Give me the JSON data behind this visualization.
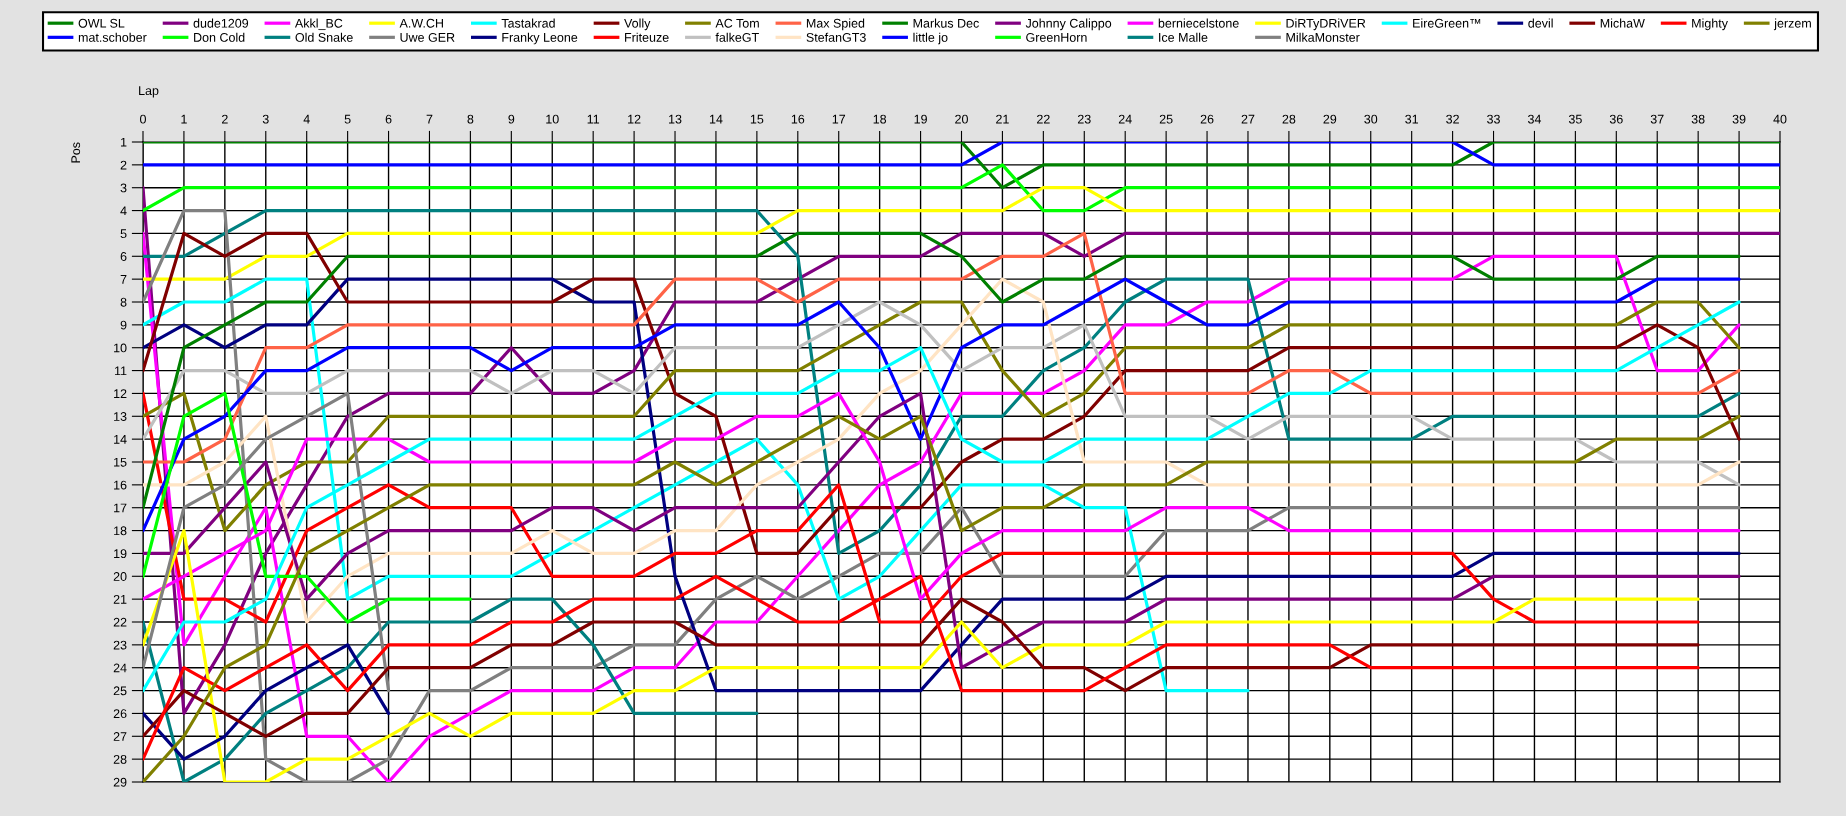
{
  "chart_data": {
    "type": "line",
    "xlabel": "Lap",
    "ylabel": "Pos",
    "x": [
      0,
      1,
      2,
      3,
      4,
      5,
      6,
      7,
      8,
      9,
      10,
      11,
      12,
      13,
      14,
      15,
      16,
      17,
      18,
      19,
      20,
      21,
      22,
      23,
      24,
      25,
      26,
      27,
      28,
      29,
      30,
      31,
      32,
      33,
      34,
      35,
      36,
      37,
      38,
      39,
      40
    ],
    "xlim": [
      0,
      40
    ],
    "ylim": [
      29,
      1
    ],
    "xticks": [
      0,
      1,
      2,
      3,
      4,
      5,
      6,
      7,
      8,
      9,
      10,
      11,
      12,
      13,
      14,
      15,
      16,
      17,
      18,
      19,
      20,
      21,
      22,
      23,
      24,
      25,
      26,
      27,
      28,
      29,
      30,
      31,
      32,
      33,
      34,
      35,
      36,
      37,
      38,
      39,
      40
    ],
    "yticks": [
      1,
      2,
      3,
      4,
      5,
      6,
      7,
      8,
      9,
      10,
      11,
      12,
      13,
      14,
      15,
      16,
      17,
      18,
      19,
      20,
      21,
      22,
      23,
      24,
      25,
      26,
      27,
      28,
      29
    ],
    "grid": true,
    "legend": "top",
    "marker": "none",
    "line_style": "solid",
    "series": [
      {
        "name": "OWL SL",
        "color": "#008000",
        "values": [
          1,
          1,
          1,
          1,
          1,
          1,
          1,
          1,
          1,
          1,
          1,
          1,
          1,
          1,
          1,
          1,
          1,
          1,
          1,
          1,
          1,
          3,
          2,
          2,
          2,
          2,
          2,
          2,
          2,
          2,
          2,
          2,
          2,
          1,
          1,
          1,
          1,
          1,
          1,
          1,
          1
        ]
      },
      {
        "name": "mat.schober",
        "color": "#0000ff",
        "values": [
          2,
          2,
          2,
          2,
          2,
          2,
          2,
          2,
          2,
          2,
          2,
          2,
          2,
          2,
          2,
          2,
          2,
          2,
          2,
          2,
          2,
          1,
          1,
          1,
          1,
          1,
          1,
          1,
          1,
          1,
          1,
          1,
          1,
          2,
          2,
          2,
          2,
          2,
          2,
          2,
          2
        ]
      },
      {
        "name": "dude1209",
        "color": "#800080",
        "values": [
          3,
          26,
          23,
          19,
          16,
          13,
          12,
          12,
          12,
          10,
          12,
          12,
          11,
          8,
          8,
          8,
          7,
          6,
          6,
          6,
          5,
          5,
          5,
          6,
          5,
          5,
          5,
          5,
          5,
          5,
          5,
          5,
          5,
          5,
          5,
          5,
          5,
          5,
          5,
          5,
          5
        ]
      },
      {
        "name": "Don Cold",
        "color": "#00ff00",
        "values": [
          4,
          3,
          3,
          3,
          3,
          3,
          3,
          3,
          3,
          3,
          3,
          3,
          3,
          3,
          3,
          3,
          3,
          3,
          3,
          3,
          3,
          2,
          4,
          4,
          3,
          3,
          3,
          3,
          3,
          3,
          3,
          3,
          3,
          3,
          3,
          3,
          3,
          3,
          3,
          3,
          3
        ]
      },
      {
        "name": "Akkl_BC",
        "color": "#ff00ff",
        "values": [
          5,
          23,
          20,
          17,
          27,
          27,
          29,
          27,
          26,
          25,
          25,
          25,
          24,
          24,
          22,
          22,
          20,
          18,
          16,
          15,
          12,
          12,
          12,
          11,
          9,
          9,
          8,
          8,
          7,
          7,
          7,
          7,
          7,
          6,
          6,
          6,
          6,
          11,
          11,
          9,
          null
        ]
      },
      {
        "name": "Old Snake",
        "color": "#008080",
        "values": [
          6,
          6,
          5,
          4,
          4,
          4,
          4,
          4,
          4,
          4,
          4,
          4,
          4,
          4,
          4,
          4,
          6,
          19,
          18,
          16,
          13,
          13,
          11,
          10,
          8,
          7,
          7,
          7,
          14,
          14,
          14,
          14,
          13,
          13,
          13,
          13,
          13,
          13,
          13,
          12,
          null
        ]
      },
      {
        "name": "A.W.CH",
        "color": "#ffff00",
        "values": [
          7,
          7,
          7,
          6,
          6,
          5,
          5,
          5,
          5,
          5,
          5,
          5,
          5,
          5,
          5,
          5,
          4,
          4,
          4,
          4,
          4,
          4,
          3,
          3,
          4,
          4,
          4,
          4,
          4,
          4,
          4,
          4,
          4,
          4,
          4,
          4,
          4,
          4,
          4,
          4,
          4
        ]
      },
      {
        "name": "Uwe GER",
        "color": "#808080",
        "values": [
          8,
          4,
          4,
          28,
          29,
          29,
          28,
          25,
          25,
          24,
          24,
          24,
          23,
          23,
          21,
          20,
          21,
          20,
          19,
          19,
          17,
          20,
          20,
          20,
          20,
          18,
          18,
          18,
          17,
          17,
          17,
          17,
          17,
          17,
          17,
          17,
          17,
          17,
          17,
          17,
          null
        ]
      },
      {
        "name": "Tastakrad",
        "color": "#00ffff",
        "values": [
          9,
          8,
          8,
          7,
          7,
          21,
          20,
          20,
          20,
          20,
          19,
          18,
          17,
          16,
          15,
          14,
          16,
          21,
          20,
          18,
          16,
          16,
          16,
          17,
          17,
          25,
          25,
          25,
          null,
          null,
          null,
          null,
          null,
          null,
          null,
          null,
          null,
          null,
          null,
          null,
          null
        ]
      },
      {
        "name": "Franky Leone",
        "color": "#000080",
        "values": [
          10,
          9,
          10,
          9,
          9,
          7,
          7,
          7,
          7,
          7,
          7,
          8,
          8,
          20,
          25,
          25,
          25,
          25,
          25,
          25,
          23,
          21,
          21,
          21,
          21,
          20,
          20,
          20,
          20,
          20,
          20,
          20,
          20,
          19,
          19,
          19,
          19,
          19,
          19,
          19,
          null
        ]
      },
      {
        "name": "Volly",
        "color": "#800000",
        "values": [
          11,
          5,
          6,
          5,
          5,
          8,
          8,
          8,
          8,
          8,
          8,
          7,
          7,
          12,
          13,
          19,
          19,
          17,
          17,
          17,
          15,
          14,
          14,
          13,
          11,
          11,
          11,
          11,
          10,
          10,
          10,
          10,
          10,
          10,
          10,
          10,
          10,
          9,
          10,
          14,
          null
        ]
      },
      {
        "name": "Friteuze",
        "color": "#ff0000",
        "values": [
          12,
          21,
          21,
          22,
          18,
          17,
          16,
          17,
          17,
          17,
          20,
          20,
          20,
          19,
          19,
          18,
          18,
          16,
          22,
          22,
          20,
          19,
          19,
          19,
          19,
          19,
          19,
          19,
          19,
          19,
          19,
          19,
          19,
          21,
          22,
          22,
          22,
          22,
          22,
          null,
          null
        ]
      },
      {
        "name": "AC Tom",
        "color": "#808000",
        "values": [
          13,
          12,
          18,
          16,
          15,
          15,
          13,
          13,
          13,
          13,
          13,
          13,
          13,
          11,
          11,
          11,
          11,
          10,
          9,
          8,
          8,
          11,
          13,
          12,
          10,
          10,
          10,
          10,
          9,
          9,
          9,
          9,
          9,
          9,
          9,
          9,
          9,
          8,
          8,
          10,
          null
        ]
      },
      {
        "name": "falkeGT",
        "color": "#c0c0c0",
        "values": [
          14,
          11,
          11,
          12,
          12,
          11,
          11,
          11,
          11,
          12,
          11,
          11,
          12,
          10,
          10,
          10,
          10,
          9,
          8,
          9,
          11,
          10,
          10,
          9,
          13,
          13,
          13,
          14,
          13,
          13,
          13,
          13,
          14,
          14,
          14,
          14,
          15,
          15,
          15,
          16,
          null
        ]
      },
      {
        "name": "Max Spied",
        "color": "#ff6347",
        "values": [
          15,
          15,
          14,
          10,
          10,
          9,
          9,
          9,
          9,
          9,
          9,
          9,
          9,
          7,
          7,
          7,
          8,
          7,
          7,
          7,
          7,
          6,
          6,
          5,
          12,
          12,
          12,
          12,
          11,
          11,
          12,
          12,
          12,
          12,
          12,
          12,
          12,
          12,
          12,
          11,
          null
        ]
      },
      {
        "name": "StefanGT3",
        "color": "#ffe4c4",
        "values": [
          16,
          16,
          15,
          13,
          22,
          20,
          19,
          19,
          19,
          19,
          18,
          19,
          19,
          18,
          18,
          16,
          15,
          14,
          12,
          11,
          9,
          7,
          8,
          15,
          15,
          15,
          16,
          16,
          16,
          16,
          16,
          16,
          16,
          16,
          16,
          16,
          16,
          16,
          16,
          15,
          null
        ]
      },
      {
        "name": "Markus Dec",
        "color": "#008000",
        "values": [
          17,
          10,
          9,
          8,
          8,
          6,
          6,
          6,
          6,
          6,
          6,
          6,
          6,
          6,
          6,
          6,
          5,
          5,
          5,
          5,
          6,
          8,
          7,
          7,
          6,
          6,
          6,
          6,
          6,
          6,
          6,
          6,
          6,
          7,
          7,
          7,
          7,
          6,
          6,
          6,
          null
        ]
      },
      {
        "name": "little jo",
        "color": "#0000ff",
        "values": [
          18,
          14,
          13,
          11,
          11,
          10,
          10,
          10,
          10,
          11,
          10,
          10,
          10,
          9,
          9,
          9,
          9,
          8,
          10,
          14,
          10,
          9,
          9,
          8,
          7,
          8,
          9,
          9,
          8,
          8,
          8,
          8,
          8,
          8,
          8,
          8,
          8,
          7,
          7,
          7,
          null
        ]
      },
      {
        "name": "Johnny Calippo",
        "color": "#800080",
        "values": [
          19,
          19,
          17,
          15,
          21,
          19,
          18,
          18,
          18,
          18,
          17,
          17,
          18,
          17,
          17,
          17,
          17,
          15,
          13,
          12,
          24,
          23,
          22,
          22,
          22,
          21,
          21,
          21,
          21,
          21,
          21,
          21,
          21,
          20,
          20,
          20,
          20,
          20,
          20,
          20,
          null
        ]
      },
      {
        "name": "GreenHorn",
        "color": "#00ff00",
        "values": [
          20,
          13,
          12,
          20,
          20,
          22,
          21,
          21,
          21,
          null,
          null,
          null,
          null,
          null,
          null,
          null,
          null,
          null,
          null,
          null,
          null,
          null,
          null,
          null,
          null,
          null,
          null,
          null,
          null,
          null,
          null,
          null,
          null,
          null,
          null,
          null,
          null,
          null,
          null,
          null,
          null
        ]
      },
      {
        "name": "berniecelstone",
        "color": "#ff00ff",
        "values": [
          21,
          20,
          19,
          18,
          14,
          14,
          14,
          15,
          15,
          15,
          15,
          15,
          15,
          14,
          14,
          13,
          13,
          12,
          15,
          21,
          19,
          18,
          18,
          18,
          18,
          17,
          17,
          17,
          18,
          18,
          18,
          18,
          18,
          18,
          18,
          18,
          18,
          18,
          18,
          18,
          null
        ]
      },
      {
        "name": "Ice Malle",
        "color": "#008080",
        "values": [
          22,
          29,
          28,
          26,
          25,
          24,
          22,
          22,
          22,
          21,
          21,
          23,
          26,
          26,
          26,
          26,
          null,
          null,
          null,
          null,
          null,
          null,
          null,
          null,
          null,
          null,
          null,
          null,
          null,
          null,
          null,
          null,
          null,
          null,
          null,
          null,
          null,
          null,
          null,
          null,
          null
        ]
      },
      {
        "name": "DiRTyDRiVER",
        "color": "#ffff00",
        "values": [
          23,
          18,
          29,
          29,
          28,
          28,
          27,
          26,
          27,
          26,
          26,
          26,
          25,
          25,
          24,
          24,
          24,
          24,
          24,
          24,
          22,
          24,
          23,
          23,
          23,
          22,
          22,
          22,
          22,
          22,
          22,
          22,
          22,
          22,
          21,
          21,
          21,
          21,
          21,
          null,
          null
        ]
      },
      {
        "name": "MilkaMonster",
        "color": "#808080",
        "values": [
          24,
          17,
          16,
          14,
          13,
          12,
          25,
          null,
          null,
          null,
          null,
          null,
          null,
          null,
          null,
          null,
          null,
          null,
          null,
          null,
          null,
          null,
          null,
          null,
          null,
          null,
          null,
          null,
          null,
          null,
          null,
          null,
          null,
          null,
          null,
          null,
          null,
          null,
          null,
          null,
          null
        ]
      },
      {
        "name": "EireGreen™",
        "color": "#00ffff",
        "values": [
          25,
          22,
          22,
          21,
          17,
          16,
          15,
          14,
          14,
          14,
          14,
          14,
          14,
          13,
          12,
          12,
          12,
          11,
          11,
          10,
          14,
          15,
          15,
          14,
          14,
          14,
          14,
          13,
          12,
          12,
          11,
          11,
          11,
          11,
          11,
          11,
          11,
          10,
          9,
          8,
          null
        ]
      },
      {
        "name": "devil",
        "color": "#000080",
        "values": [
          26,
          28,
          27,
          25,
          24,
          23,
          26,
          null,
          null,
          null,
          null,
          null,
          null,
          null,
          null,
          null,
          null,
          null,
          null,
          null,
          null,
          null,
          null,
          null,
          null,
          null,
          null,
          null,
          null,
          null,
          null,
          null,
          null,
          null,
          null,
          null,
          null,
          null,
          null,
          null,
          null
        ]
      },
      {
        "name": "MichaW",
        "color": "#800000",
        "values": [
          27,
          25,
          26,
          27,
          26,
          26,
          24,
          24,
          24,
          23,
          23,
          22,
          22,
          22,
          23,
          23,
          23,
          23,
          23,
          23,
          21,
          22,
          24,
          24,
          25,
          24,
          24,
          24,
          24,
          24,
          23,
          23,
          23,
          23,
          23,
          23,
          23,
          23,
          23,
          null,
          null
        ]
      },
      {
        "name": "Mighty",
        "color": "#ff0000",
        "values": [
          28,
          24,
          25,
          24,
          23,
          25,
          23,
          23,
          23,
          22,
          22,
          21,
          21,
          21,
          20,
          21,
          22,
          22,
          21,
          20,
          25,
          25,
          25,
          25,
          24,
          23,
          23,
          23,
          23,
          23,
          24,
          24,
          24,
          24,
          24,
          24,
          24,
          24,
          24,
          null,
          null
        ]
      },
      {
        "name": "jerzem",
        "color": "#808000",
        "values": [
          29,
          27,
          24,
          23,
          19,
          18,
          17,
          16,
          16,
          16,
          16,
          16,
          16,
          15,
          16,
          15,
          14,
          13,
          14,
          13,
          18,
          17,
          17,
          16,
          16,
          16,
          15,
          15,
          15,
          15,
          15,
          15,
          15,
          15,
          15,
          15,
          14,
          14,
          14,
          13,
          null
        ]
      }
    ]
  }
}
